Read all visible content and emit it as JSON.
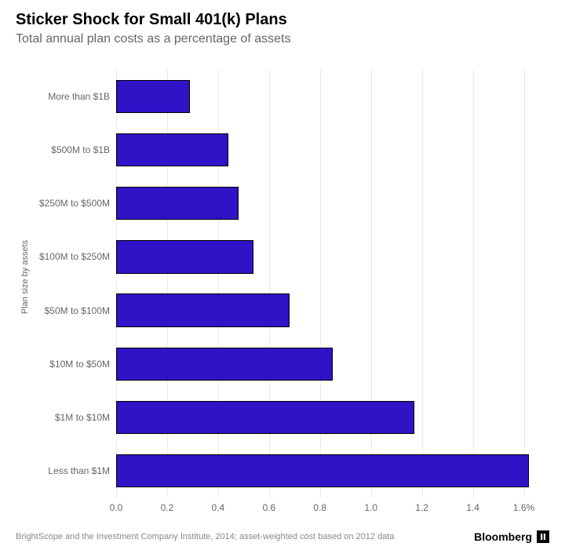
{
  "chart": {
    "type": "bar-horizontal",
    "title": "Sticker Shock for Small 401(k) Plans",
    "title_fontsize": 20,
    "subtitle": "Total annual plan costs as a percentage of assets",
    "subtitle_fontsize": 16,
    "subtitle_color": "#666666",
    "yaxis_label": "Plan size by assets",
    "yaxis_label_fontsize": 11,
    "categories": [
      "More than $1B",
      "$500M to $1B",
      "$250M to $500M",
      "$100M to $250M",
      "$50M to $100M",
      "$10M to $50M",
      "$1M to $10M",
      "Less than $1M"
    ],
    "values": [
      0.29,
      0.44,
      0.48,
      0.54,
      0.68,
      0.85,
      1.17,
      1.62
    ],
    "bar_color": "#2f13c7",
    "bar_border_color": "#000000",
    "bar_height_pct": 62,
    "xlim": [
      0.0,
      1.7
    ],
    "xtick_step": 0.2,
    "xticks": [
      {
        "pos": 0.0,
        "label": "0.0"
      },
      {
        "pos": 0.2,
        "label": "0.2"
      },
      {
        "pos": 0.4,
        "label": "0.4"
      },
      {
        "pos": 0.6,
        "label": "0.6"
      },
      {
        "pos": 0.8,
        "label": "0.8"
      },
      {
        "pos": 1.0,
        "label": "1.0"
      },
      {
        "pos": 1.2,
        "label": "1.2"
      },
      {
        "pos": 1.4,
        "label": "1.4"
      },
      {
        "pos": 1.6,
        "label": "1.6%"
      }
    ],
    "background_color": "#ffffff",
    "grid_color": "#e8e8e8",
    "tick_label_color": "#666666",
    "tick_fontsize": 12,
    "category_label_color": "#666666",
    "category_fontsize": 12
  },
  "footer": {
    "source": "BrightScope and the Investment Company Institute, 2014; asset-weighted cost based on 2012 data",
    "source_fontsize": 11,
    "source_color": "#888888",
    "brand": "Bloomberg",
    "brand_mark_glyph": "▯"
  }
}
